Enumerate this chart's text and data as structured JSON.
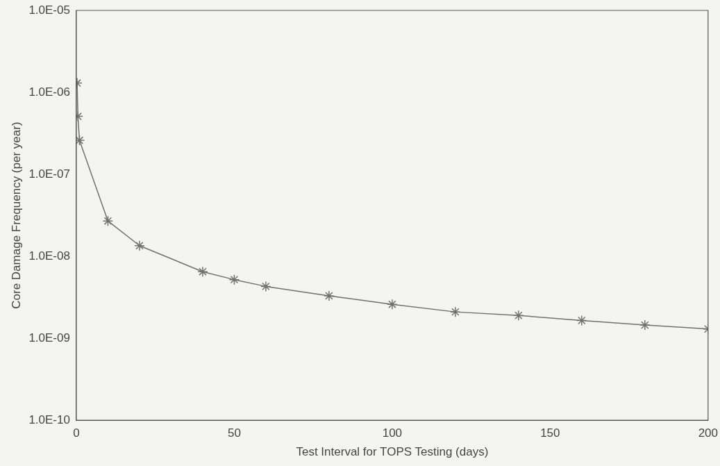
{
  "chart_data": {
    "type": "line",
    "xlabel": "Test Interval for TOPS Testing (days)",
    "ylabel": "Core Damage Frequency (per year)",
    "x": [
      0.25,
      0.5,
      1,
      10,
      20,
      40,
      50,
      60,
      80,
      100,
      120,
      140,
      160,
      180,
      200
    ],
    "series": [
      {
        "color": "#707070",
        "values": [
          1.3e-06,
          5.1e-07,
          2.6e-07,
          2.7e-08,
          1.35e-08,
          6.5e-09,
          5.2e-09,
          4.3e-09,
          3.3e-09,
          2.6e-09,
          2.1e-09,
          1.9e-09,
          1.65e-09,
          1.45e-09,
          1.3e-09
        ]
      }
    ],
    "xlim": [
      0,
      200
    ],
    "xticks": [
      0,
      50,
      100,
      150,
      200
    ],
    "ylim": [
      1e-10,
      1e-05
    ],
    "yticks": [
      {
        "value": 1e-10,
        "label": "1.0E-10"
      },
      {
        "value": 1e-09,
        "label": "1.0E-09"
      },
      {
        "value": 1e-08,
        "label": "1.0E-08"
      },
      {
        "value": 1e-07,
        "label": "1.0E-07"
      },
      {
        "value": 1e-06,
        "label": "1.0E-06"
      },
      {
        "value": 1e-05,
        "label": "1.0E-05"
      }
    ],
    "log": "y",
    "grid": false,
    "legend": false,
    "marker": "cross",
    "line_style": "solid"
  }
}
